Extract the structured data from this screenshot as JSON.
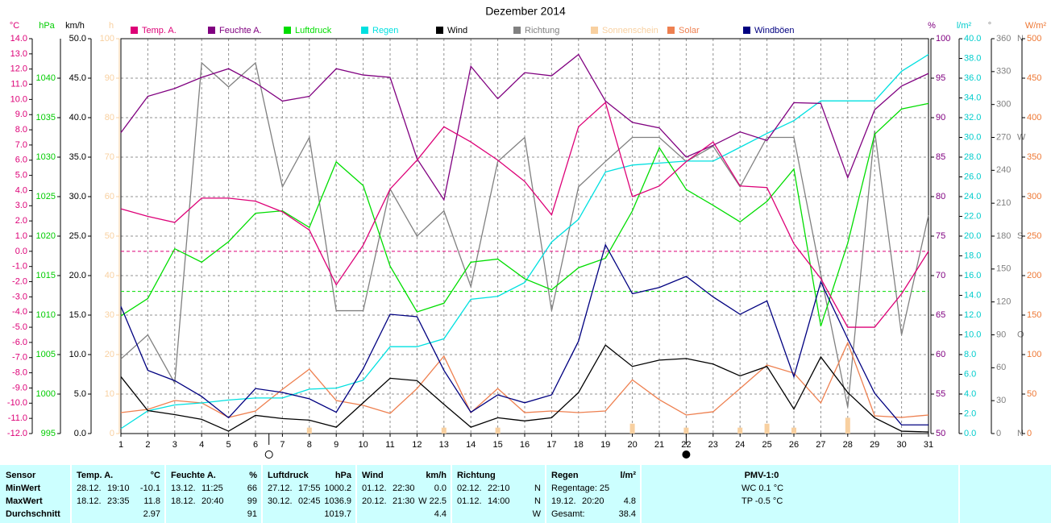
{
  "chart_data": {
    "type": "line",
    "title": "Dezember 2014",
    "x": [
      1,
      2,
      3,
      4,
      5,
      6,
      7,
      8,
      9,
      10,
      11,
      12,
      13,
      14,
      15,
      16,
      17,
      18,
      19,
      20,
      21,
      22,
      23,
      24,
      25,
      26,
      27,
      28,
      29,
      30,
      31
    ],
    "xlim": [
      1,
      31
    ],
    "xticks": [
      1,
      2,
      3,
      4,
      5,
      6,
      7,
      8,
      9,
      10,
      11,
      12,
      13,
      14,
      15,
      16,
      17,
      18,
      19,
      20,
      21,
      22,
      23,
      24,
      25,
      26,
      27,
      28,
      29,
      30,
      31
    ],
    "grid": true,
    "axes": {
      "temp": {
        "unit": "°C",
        "color": "#dd0077",
        "lim": [
          -12,
          14
        ],
        "ticks": [
          {
            "value": 14,
            "label": "14.0"
          },
          {
            "value": 13,
            "label": "13.0"
          },
          {
            "value": 12,
            "label": "12.0"
          },
          {
            "value": 11,
            "label": "11.0"
          },
          {
            "value": 10,
            "label": "10.0"
          },
          {
            "value": 9,
            "label": "9.0"
          },
          {
            "value": 8,
            "label": "8.0"
          },
          {
            "value": 7,
            "label": "7.0"
          },
          {
            "value": 6,
            "label": "6.0"
          },
          {
            "value": 5,
            "label": "5.0"
          },
          {
            "value": 4,
            "label": "4.0"
          },
          {
            "value": 3,
            "label": "3.0"
          },
          {
            "value": 2,
            "label": "2.0"
          },
          {
            "value": 1,
            "label": "1.0"
          },
          {
            "value": 0,
            "label": "0.0"
          },
          {
            "value": -1,
            "label": "-1.0"
          },
          {
            "value": -2,
            "label": "-2.0"
          },
          {
            "value": -3,
            "label": "-3.0"
          },
          {
            "value": -4,
            "label": "-4.0"
          },
          {
            "value": -5,
            "label": "-5.0"
          },
          {
            "value": -6,
            "label": "-6.0"
          },
          {
            "value": -7,
            "label": "-7.0"
          },
          {
            "value": -8,
            "label": "-8.0"
          },
          {
            "value": -9,
            "label": "-9.0"
          },
          {
            "value": -10,
            "label": "-10.0"
          },
          {
            "value": -11,
            "label": "-11.0"
          },
          {
            "value": -12,
            "label": "-12.0"
          }
        ]
      },
      "pressure": {
        "unit": "hPa",
        "color": "#00cc00",
        "lim": [
          995,
          1045
        ],
        "ticks": [
          1040,
          1035,
          1030,
          1025,
          1020,
          1015,
          1010,
          1005,
          1000,
          995
        ]
      },
      "wind": {
        "unit": "km/h",
        "color": "#000000",
        "lim": [
          0,
          50
        ],
        "ticks": [
          {
            "value": 50,
            "label": "50.0"
          },
          {
            "value": 45,
            "label": "45.0"
          },
          {
            "value": 40,
            "label": "40.0"
          },
          {
            "value": 35,
            "label": "35.0"
          },
          {
            "value": 30,
            "label": "30.0"
          },
          {
            "value": 25,
            "label": "25.0"
          },
          {
            "value": 20,
            "label": "20.0"
          },
          {
            "value": 15,
            "label": "15.0"
          },
          {
            "value": 10,
            "label": "10.0"
          },
          {
            "value": 5,
            "label": "5.0"
          },
          {
            "value": 0,
            "label": "0.0"
          }
        ]
      },
      "sun": {
        "unit": "h",
        "color": "#f8d0a0",
        "lim": [
          0,
          100
        ],
        "ticks": [
          100,
          90,
          80,
          70,
          60,
          50,
          40,
          30,
          20,
          10,
          0
        ]
      },
      "humidity": {
        "unit": "%",
        "color": "#800080",
        "lim": [
          50,
          100
        ],
        "ticks": [
          100,
          95,
          90,
          85,
          80,
          75,
          70,
          65,
          60,
          55,
          50
        ]
      },
      "rain": {
        "unit": "l/m²",
        "color": "#00cccc",
        "lim": [
          0,
          40
        ],
        "ticks": [
          {
            "value": 40,
            "label": "40.0"
          },
          {
            "value": 38,
            "label": "38.0"
          },
          {
            "value": 36,
            "label": "36.0"
          },
          {
            "value": 34,
            "label": "34.0"
          },
          {
            "value": 32,
            "label": "32.0"
          },
          {
            "value": 30,
            "label": "30.0"
          },
          {
            "value": 28,
            "label": "28.0"
          },
          {
            "value": 26,
            "label": "26.0"
          },
          {
            "value": 24,
            "label": "24.0"
          },
          {
            "value": 22,
            "label": "22.0"
          },
          {
            "value": 20,
            "label": "20.0"
          },
          {
            "value": 18,
            "label": "18.0"
          },
          {
            "value": 16,
            "label": "16.0"
          },
          {
            "value": 14,
            "label": "14.0"
          },
          {
            "value": 12,
            "label": "12.0"
          },
          {
            "value": 10,
            "label": "10.0"
          },
          {
            "value": 8,
            "label": "8.0"
          },
          {
            "value": 6,
            "label": "6.0"
          },
          {
            "value": 4,
            "label": "4.0"
          },
          {
            "value": 2,
            "label": "2.0"
          },
          {
            "value": 0,
            "label": "0.0"
          }
        ]
      },
      "direction": {
        "unit": "°",
        "color": "#808080",
        "lim": [
          0,
          360
        ],
        "ticks": [
          360,
          330,
          300,
          270,
          240,
          210,
          180,
          150,
          120,
          90,
          60,
          30,
          0
        ],
        "compass": [
          {
            "value": 360,
            "label": "N"
          },
          {
            "value": 270,
            "label": "W"
          },
          {
            "value": 180,
            "label": "S"
          },
          {
            "value": 90,
            "label": "O"
          },
          {
            "value": 0,
            "label": "N"
          }
        ]
      },
      "solar": {
        "unit": "W/m²",
        "color": "#ee7733",
        "lim": [
          0,
          500
        ],
        "ticks": [
          500,
          450,
          400,
          350,
          300,
          250,
          200,
          150,
          100,
          50,
          0
        ]
      }
    },
    "series": [
      {
        "name": "Temp. A.",
        "color": "#dd0077",
        "axis": "temp",
        "values": [
          2.8,
          2.3,
          1.9,
          3.5,
          3.5,
          3.3,
          2.6,
          1.4,
          -2.2,
          0.4,
          4.1,
          6.0,
          8.2,
          7.2,
          6.0,
          4.6,
          2.4,
          8.2,
          9.8,
          3.6,
          4.3,
          5.9,
          7.2,
          4.3,
          4.2,
          0.5,
          -1.8,
          -5.0,
          -5.0,
          -2.8,
          0.0
        ]
      },
      {
        "name": "Feuchte A.",
        "color": "#800080",
        "axis": "humidity",
        "values": [
          88.1,
          92.7,
          93.7,
          95.1,
          96.2,
          94.4,
          92.1,
          92.7,
          96.2,
          95.4,
          95.1,
          84.8,
          79.6,
          96.5,
          92.4,
          95.7,
          95.3,
          98.0,
          92.1,
          89.4,
          88.7,
          85.0,
          86.5,
          88.2,
          87.1,
          91.9,
          91.8,
          82.4,
          91.0,
          94.0,
          95.6
        ]
      },
      {
        "name": "Luftdruck",
        "color": "#00dd00",
        "axis": "pressure",
        "values": [
          1009.9,
          1012.1,
          1018.4,
          1016.7,
          1019.3,
          1022.9,
          1023.2,
          1021.1,
          1029.4,
          1026.4,
          1016.2,
          1010.4,
          1011.5,
          1016.7,
          1017.1,
          1014.6,
          1013.2,
          1016.0,
          1017.2,
          1023.2,
          1031.2,
          1025.9,
          1023.9,
          1021.8,
          1024.4,
          1028.5,
          1008.6,
          1019.1,
          1032.9,
          1036.1,
          1036.8
        ]
      },
      {
        "name": "Regen",
        "color": "#00e0e0",
        "axis": "rain",
        "values": [
          0.5,
          2.3,
          2.9,
          3.1,
          3.4,
          3.6,
          3.6,
          4.5,
          4.6,
          5.4,
          8.8,
          8.8,
          9.6,
          13.6,
          13.9,
          15.3,
          19.4,
          21.7,
          26.5,
          27.2,
          27.4,
          27.6,
          27.6,
          29.0,
          30.4,
          31.7,
          33.7,
          33.7,
          33.7,
          36.7,
          38.4
        ]
      },
      {
        "name": "Wind",
        "color": "#000000",
        "axis": "wind",
        "values": [
          7.2,
          2.9,
          2.4,
          1.8,
          0.3,
          2.3,
          1.9,
          1.7,
          0.8,
          3.9,
          7.0,
          6.7,
          3.7,
          0.8,
          2.0,
          1.6,
          2.0,
          5.2,
          11.2,
          8.5,
          9.3,
          9.5,
          8.8,
          7.3,
          8.5,
          3.1,
          9.7,
          5.2,
          2.0,
          0.3,
          0.2
        ]
      },
      {
        "name": "Richtung",
        "color": "#808080",
        "axis": "direction",
        "values": [
          68,
          90,
          46,
          338,
          316,
          338,
          225,
          270,
          112,
          112,
          223,
          180,
          203,
          134,
          248,
          270,
          112,
          225,
          248,
          270,
          270,
          248,
          262,
          225,
          270,
          270,
          145,
          24,
          276,
          90,
          199
        ]
      },
      {
        "name": "Sonnenschein",
        "color": "#f8d0a0",
        "axis": "sun",
        "kind": "bar",
        "values": [
          0,
          0,
          0,
          0,
          0,
          0,
          0,
          1.5,
          0,
          0,
          0,
          0,
          1.5,
          0,
          1.5,
          0,
          0,
          0,
          0,
          2.5,
          0,
          1.5,
          0,
          1.5,
          2.5,
          1.5,
          0,
          4,
          0,
          0,
          0
        ]
      },
      {
        "name": "Solar",
        "color": "#ee8050",
        "axis": "solar",
        "values": [
          26.5,
          30.6,
          41.8,
          38.8,
          20.4,
          28.6,
          56,
          81.6,
          41.8,
          35.7,
          25.5,
          57,
          98,
          26.5,
          57,
          26.5,
          28.6,
          26.5,
          28.6,
          68,
          42.9,
          23.5,
          27.6,
          57,
          86.7,
          76.5,
          38.8,
          115,
          22.4,
          20.4,
          23.5
        ]
      },
      {
        "name": "Windböen",
        "color": "#000080",
        "axis": "wind",
        "values": [
          16.1,
          8.0,
          6.7,
          4.7,
          2.0,
          5.7,
          5.2,
          4.4,
          2.7,
          8.2,
          15.1,
          14.8,
          8.0,
          2.7,
          4.9,
          3.9,
          4.9,
          11.7,
          23.9,
          17.7,
          18.5,
          19.9,
          17.3,
          15.1,
          16.8,
          7.2,
          19.2,
          12.0,
          5.1,
          1.1,
          1.1
        ]
      }
    ],
    "reference_lines": [
      {
        "axis": "temp",
        "value": 0,
        "color": "#dd0077"
      },
      {
        "axis": "pressure",
        "value": 1013,
        "color": "#00dd00"
      }
    ],
    "moon": {
      "full": 6.5,
      "new": 22
    }
  },
  "table": {
    "header": [
      {
        "name": "Sensor"
      },
      {
        "name": "Temp. A.",
        "unit": "°C"
      },
      {
        "name": "Feuchte A.",
        "unit": "%"
      },
      {
        "name": "Luftdruck",
        "unit": "hPa"
      },
      {
        "name": "Wind",
        "unit": "km/h"
      },
      {
        "name": "Richtung"
      },
      {
        "name": "Regen",
        "unit": "l/m²"
      },
      {
        "name": "PMV-1:0"
      }
    ],
    "rows": [
      {
        "label": "MinWert",
        "cells": [
          {
            "date": "28.12.",
            "time": "19:10",
            "value": "-10.1"
          },
          {
            "date": "13.12.",
            "time": "11:25",
            "value": "66"
          },
          {
            "date": "27.12.",
            "time": "17:55",
            "value": "1000.2"
          },
          {
            "date": "01.12.",
            "time": "22:30",
            "value": "0.0"
          },
          {
            "date": "02.12.",
            "time": "22:10",
            "value": "N"
          },
          {
            "date": "Regentage: 25"
          }
        ]
      },
      {
        "label": "MaxWert",
        "cells": [
          {
            "date": "18.12.",
            "time": "23:35",
            "value": "11.8"
          },
          {
            "date": "18.12.",
            "time": "20:40",
            "value": "99"
          },
          {
            "date": "30.12.",
            "time": "02:45",
            "value": "1036.9"
          },
          {
            "date": "20.12.",
            "time": "21:30",
            "value": "W 22.5"
          },
          {
            "date": "01.12.",
            "time": "14:00",
            "value": "N"
          },
          {
            "date": "19.12.",
            "time": "20:20",
            "value": "4.8"
          }
        ]
      },
      {
        "label": "Durchschnitt",
        "cells": [
          {
            "value": "2.97"
          },
          {
            "value": "91"
          },
          {
            "value": "1019.7"
          },
          {
            "value": "4.4"
          },
          {
            "value": "W"
          },
          {
            "date": "Gesamt:",
            "value": "38.4"
          }
        ]
      }
    ],
    "pmv": [
      "WC 0.1 °C",
      "TP -0.5 °C"
    ]
  }
}
